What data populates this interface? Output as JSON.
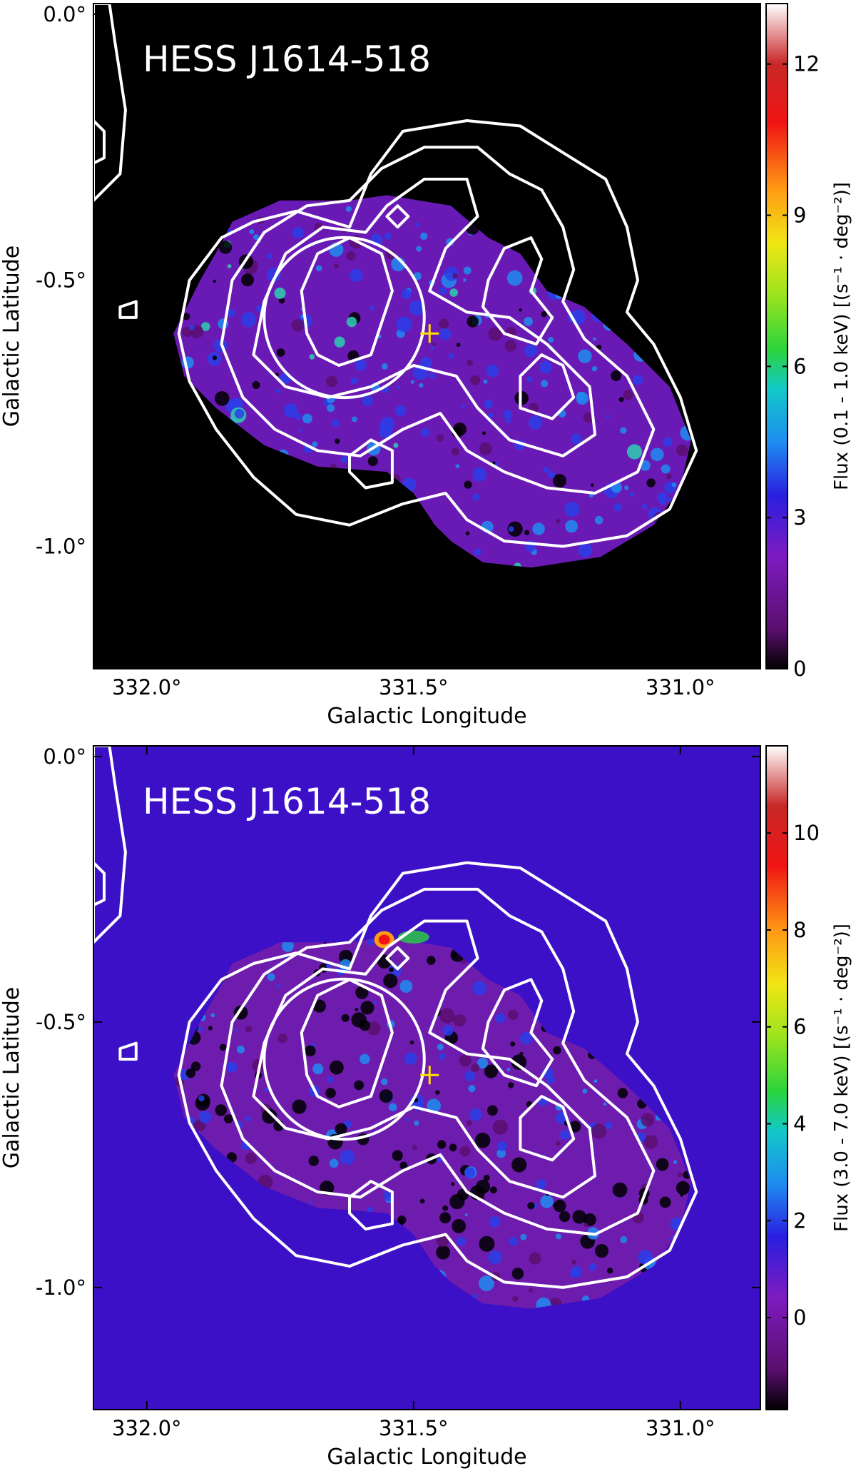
{
  "chart_data": [
    {
      "type": "heatmap",
      "title": "HESS J1614-518",
      "xlabel": "Galactic Longitude",
      "ylabel": "Galactic Latitude",
      "xlim": [
        332.1,
        330.85
      ],
      "ylim": [
        -1.23,
        0.02
      ],
      "x_ticks": [
        332.0,
        331.5,
        331.0
      ],
      "x_tick_labels": [
        "332.0°",
        "331.5°",
        "331.0°"
      ],
      "y_ticks": [
        0.0,
        -0.5,
        -1.0
      ],
      "y_tick_labels": [
        "0.0°",
        "-0.5°",
        "-1.0°"
      ],
      "background": "#000000",
      "colorbar": {
        "label": "Flux (0.1 - 1.0 keV) [(s⁻¹ · deg⁻²)]",
        "range": [
          0,
          13.2
        ],
        "ticks": [
          0,
          3,
          6,
          9,
          12
        ],
        "tick_labels": [
          "0",
          "3",
          "6",
          "9",
          "12"
        ]
      },
      "markers": [
        {
          "type": "circle",
          "l": 331.63,
          "b": -0.57,
          "radius": 0.15,
          "color": "#ffffff"
        },
        {
          "type": "cross",
          "l": 331.47,
          "b": -0.6,
          "color": "#ffe000"
        }
      ],
      "contour_color": "#ffffff"
    },
    {
      "type": "heatmap",
      "title": "HESS J1614-518",
      "xlabel": "Galactic Longitude",
      "ylabel": "Galactic Latitude",
      "xlim": [
        332.1,
        330.85
      ],
      "ylim": [
        -1.23,
        0.02
      ],
      "x_ticks": [
        332.0,
        331.5,
        331.0
      ],
      "x_tick_labels": [
        "332.0°",
        "331.5°",
        "331.0°"
      ],
      "y_ticks": [
        0.0,
        -0.5,
        -1.0
      ],
      "y_tick_labels": [
        "0.0°",
        "-0.5°",
        "-1.0°"
      ],
      "background": "#3c10c6",
      "colorbar": {
        "label": "Flux (3.0 - 7.0 keV) [(s⁻¹ · deg⁻²)]",
        "range": [
          -1.9,
          11.8
        ],
        "ticks": [
          0,
          2,
          4,
          6,
          8,
          10
        ],
        "tick_labels": [
          "0",
          "2",
          "4",
          "6",
          "8",
          "10"
        ]
      },
      "markers": [
        {
          "type": "circle",
          "l": 331.63,
          "b": -0.57,
          "radius": 0.15,
          "color": "#ffffff"
        },
        {
          "type": "cross",
          "l": 331.47,
          "b": -0.6,
          "color": "#ffe000"
        }
      ],
      "contour_color": "#ffffff"
    }
  ]
}
